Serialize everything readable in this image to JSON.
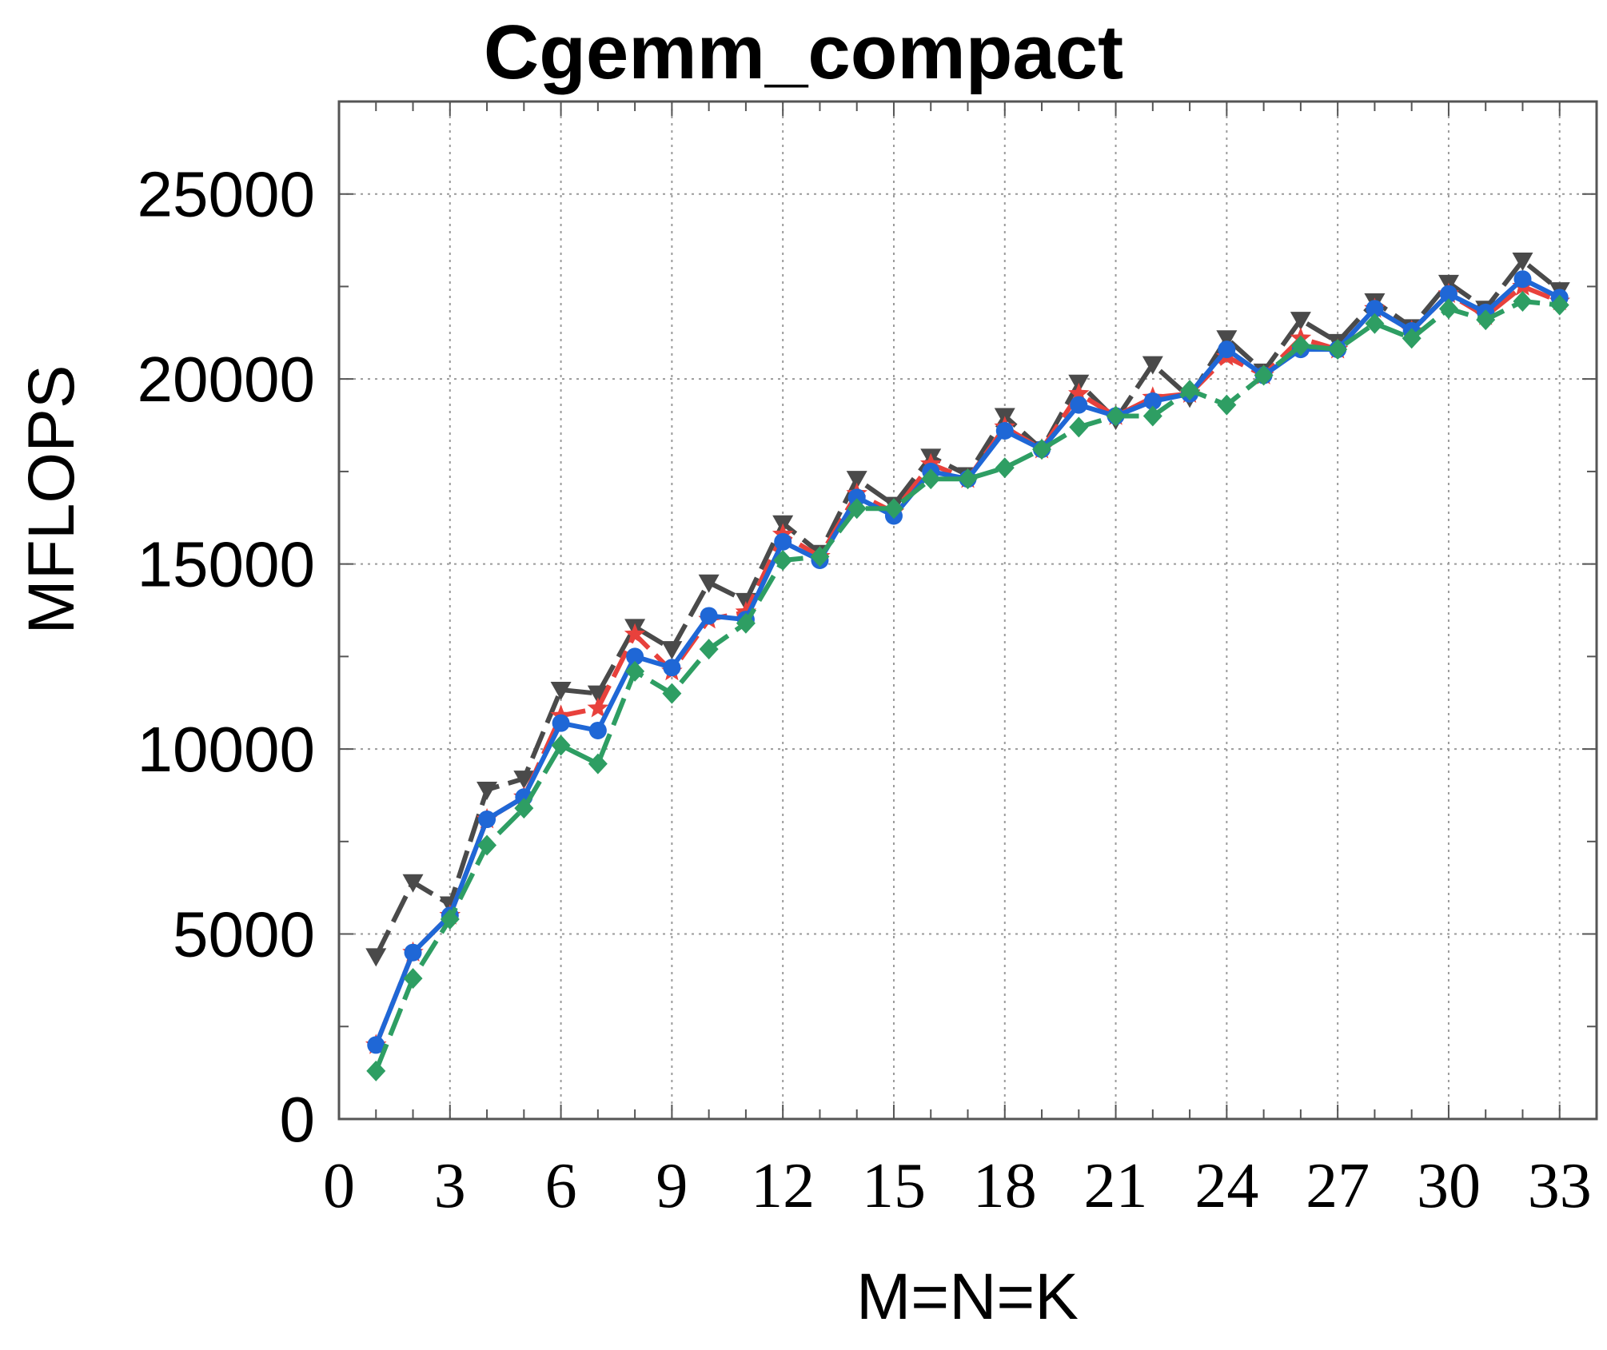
{
  "chart_data": {
    "type": "line",
    "title": "Cgemm_compact",
    "xlabel": "M=N=K",
    "ylabel": "MFLOPS",
    "xlim": [
      0,
      34
    ],
    "ylim": [
      0,
      27500
    ],
    "x_ticks": [
      0,
      3,
      6,
      9,
      12,
      15,
      18,
      21,
      24,
      27,
      30,
      33
    ],
    "y_ticks": [
      0,
      5000,
      10000,
      15000,
      20000,
      25000
    ],
    "grid": true,
    "x": [
      1,
      2,
      3,
      4,
      5,
      6,
      7,
      8,
      9,
      10,
      11,
      12,
      13,
      14,
      15,
      16,
      17,
      18,
      19,
      20,
      21,
      22,
      23,
      24,
      25,
      26,
      27,
      28,
      29,
      30,
      31,
      32,
      33
    ],
    "series": [
      {
        "color": "#4a4a4a",
        "marker": "triangle-down",
        "dash": "dashed",
        "values": [
          4400,
          6400,
          5800,
          8900,
          9200,
          11600,
          11500,
          13300,
          12700,
          14500,
          14000,
          16100,
          15300,
          17300,
          16600,
          17900,
          17400,
          19000,
          18100,
          19900,
          18900,
          20400,
          19500,
          21100,
          20200,
          21600,
          21000,
          22100,
          21400,
          22600,
          21900,
          23200,
          22400
        ]
      },
      {
        "color": "#e8413c",
        "marker": "star",
        "dash": "dashed",
        "values": [
          2000,
          4500,
          5500,
          8100,
          8700,
          10900,
          11100,
          13100,
          12100,
          13500,
          13700,
          15800,
          15200,
          16900,
          16400,
          17700,
          17300,
          18700,
          18100,
          19600,
          19000,
          19500,
          19600,
          20600,
          20100,
          21100,
          20800,
          21900,
          21300,
          22300,
          21700,
          22500,
          22100
        ]
      },
      {
        "color": "#1f67d6",
        "marker": "circle",
        "dash": "solid",
        "values": [
          2000,
          4500,
          5500,
          8100,
          8700,
          10700,
          10500,
          12500,
          12200,
          13600,
          13500,
          15600,
          15100,
          16800,
          16300,
          17500,
          17300,
          18600,
          18100,
          19300,
          19000,
          19400,
          19600,
          20800,
          20100,
          20800,
          20800,
          21900,
          21300,
          22300,
          21800,
          22700,
          22200
        ]
      },
      {
        "color": "#2e9e63",
        "marker": "diamond",
        "dash": "dashed",
        "values": [
          1300,
          3800,
          5400,
          7400,
          8400,
          10100,
          9600,
          12100,
          11500,
          12700,
          13400,
          15100,
          15200,
          16500,
          16500,
          17300,
          17300,
          17600,
          18100,
          18700,
          19000,
          19000,
          19700,
          19300,
          20100,
          20900,
          20800,
          21500,
          21100,
          21900,
          21600,
          22100,
          22000
        ]
      }
    ]
  }
}
